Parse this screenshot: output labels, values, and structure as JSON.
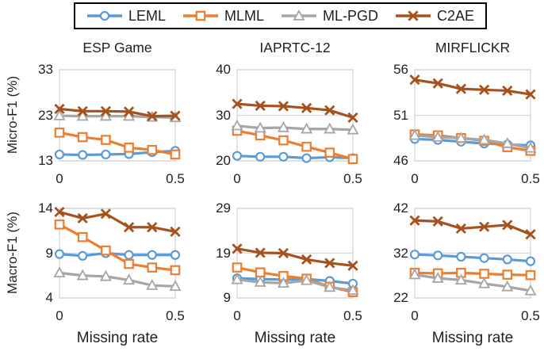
{
  "legend": {
    "items": [
      {
        "label": "LEML",
        "marker": "circle",
        "color": "#5B9BD5"
      },
      {
        "label": "MLML",
        "marker": "square",
        "color": "#ED7D31"
      },
      {
        "label": "ML-PGD",
        "marker": "triangle",
        "color": "#A6A6A6"
      },
      {
        "label": "C2AE",
        "marker": "xcross",
        "color": "#A5521E"
      }
    ]
  },
  "rows": [
    {
      "label": "Micro-F1 (%)"
    },
    {
      "label": "Macro-F1 (%)"
    }
  ],
  "x_axis": {
    "ticks": [
      "0",
      "0.5"
    ],
    "label": "Missing rate"
  },
  "colors": {
    "grid": "#D9D9D9",
    "plot_border": "#D0D0D0"
  },
  "chart_data": [
    {
      "type": "line",
      "title": "ESP Game",
      "row": "Micro-F1 (%)",
      "x": [
        0,
        0.1,
        0.2,
        0.3,
        0.4,
        0.5
      ],
      "ylim": [
        13,
        33
      ],
      "yticks": [
        33,
        23,
        13
      ],
      "series": [
        {
          "name": "LEML",
          "values": [
            14.4,
            14.3,
            14.4,
            14.5,
            14.9,
            15.2
          ]
        },
        {
          "name": "MLML",
          "values": [
            19.2,
            18.2,
            17.6,
            15.9,
            15.4,
            14.4
          ]
        },
        {
          "name": "ML-PGD",
          "values": [
            22.9,
            22.8,
            22.8,
            22.8,
            22.6,
            22.5
          ]
        },
        {
          "name": "C2AE",
          "values": [
            24.4,
            23.9,
            23.9,
            23.8,
            22.8,
            22.9
          ]
        }
      ]
    },
    {
      "type": "line",
      "title": "IAPRTC-12",
      "row": "Micro-F1 (%)",
      "x": [
        0,
        0.1,
        0.2,
        0.3,
        0.4,
        0.5
      ],
      "ylim": [
        20,
        40
      ],
      "yticks": [
        40,
        30,
        20
      ],
      "series": [
        {
          "name": "LEML",
          "values": [
            21.1,
            20.9,
            20.9,
            20.6,
            20.8,
            20.6
          ]
        },
        {
          "name": "MLML",
          "values": [
            26.6,
            25.6,
            24.5,
            23.1,
            21.8,
            20.4
          ]
        },
        {
          "name": "ML-PGD",
          "values": [
            27.7,
            27.2,
            27.3,
            27.0,
            27.0,
            26.8
          ]
        },
        {
          "name": "C2AE",
          "values": [
            32.5,
            32.1,
            32.0,
            31.6,
            31.1,
            29.5
          ]
        }
      ]
    },
    {
      "type": "line",
      "title": "MIRFLICKR",
      "row": "Micro-F1 (%)",
      "x": [
        0,
        0.1,
        0.2,
        0.3,
        0.4,
        0.5
      ],
      "ylim": [
        46,
        56
      ],
      "yticks": [
        56,
        51,
        46
      ],
      "series": [
        {
          "name": "LEML",
          "values": [
            48.4,
            48.3,
            48.1,
            47.9,
            47.8,
            47.7
          ]
        },
        {
          "name": "MLML",
          "values": [
            48.9,
            48.8,
            48.5,
            48.2,
            47.5,
            47.1
          ]
        },
        {
          "name": "ML-PGD",
          "values": [
            48.8,
            48.6,
            48.5,
            48.3,
            47.9,
            47.4
          ]
        },
        {
          "name": "C2AE",
          "values": [
            54.9,
            54.5,
            53.9,
            53.8,
            53.7,
            53.3
          ]
        }
      ]
    },
    {
      "type": "line",
      "title": "ESP Game",
      "row": "Macro-F1 (%)",
      "x": [
        0,
        0.1,
        0.2,
        0.3,
        0.4,
        0.5
      ],
      "ylim": [
        4,
        14
      ],
      "yticks": [
        14,
        9,
        4
      ],
      "series": [
        {
          "name": "LEML",
          "values": [
            8.9,
            8.7,
            9.0,
            8.8,
            8.8,
            8.8
          ]
        },
        {
          "name": "MLML",
          "values": [
            12.2,
            10.8,
            9.3,
            7.8,
            7.4,
            7.1
          ]
        },
        {
          "name": "ML-PGD",
          "values": [
            6.8,
            6.5,
            6.4,
            6.0,
            5.4,
            5.3
          ]
        },
        {
          "name": "C2AE",
          "values": [
            13.6,
            12.9,
            13.4,
            11.9,
            11.9,
            11.4
          ]
        }
      ]
    },
    {
      "type": "line",
      "title": "IAPRTC-12",
      "row": "Macro-F1 (%)",
      "x": [
        0,
        0.1,
        0.2,
        0.3,
        0.4,
        0.5
      ],
      "ylim": [
        9,
        29
      ],
      "yticks": [
        29,
        19,
        9
      ],
      "series": [
        {
          "name": "LEML",
          "values": [
            13.4,
            13.2,
            13.1,
            13.2,
            12.8,
            12.2
          ]
        },
        {
          "name": "MLML",
          "values": [
            15.8,
            14.7,
            13.9,
            13.3,
            11.5,
            10.3
          ]
        },
        {
          "name": "ML-PGD",
          "values": [
            13.1,
            12.5,
            12.3,
            12.9,
            11.4,
            10.7
          ]
        },
        {
          "name": "C2AE",
          "values": [
            20.0,
            19.1,
            19.0,
            17.6,
            16.8,
            16.2
          ]
        }
      ]
    },
    {
      "type": "line",
      "title": "MIRFLICKR",
      "row": "Macro-F1 (%)",
      "x": [
        0,
        0.1,
        0.2,
        0.3,
        0.4,
        0.5
      ],
      "ylim": [
        22,
        42
      ],
      "yticks": [
        42,
        32,
        22
      ],
      "series": [
        {
          "name": "LEML",
          "values": [
            31.7,
            31.5,
            31.2,
            30.9,
            30.6,
            30.2
          ]
        },
        {
          "name": "MLML",
          "values": [
            27.6,
            27.5,
            27.6,
            27.4,
            27.2,
            27.1
          ]
        },
        {
          "name": "ML-PGD",
          "values": [
            27.2,
            26.4,
            26.0,
            25.2,
            24.5,
            23.6
          ]
        },
        {
          "name": "C2AE",
          "values": [
            39.3,
            39.1,
            37.5,
            37.9,
            38.3,
            36.2
          ]
        }
      ]
    }
  ]
}
